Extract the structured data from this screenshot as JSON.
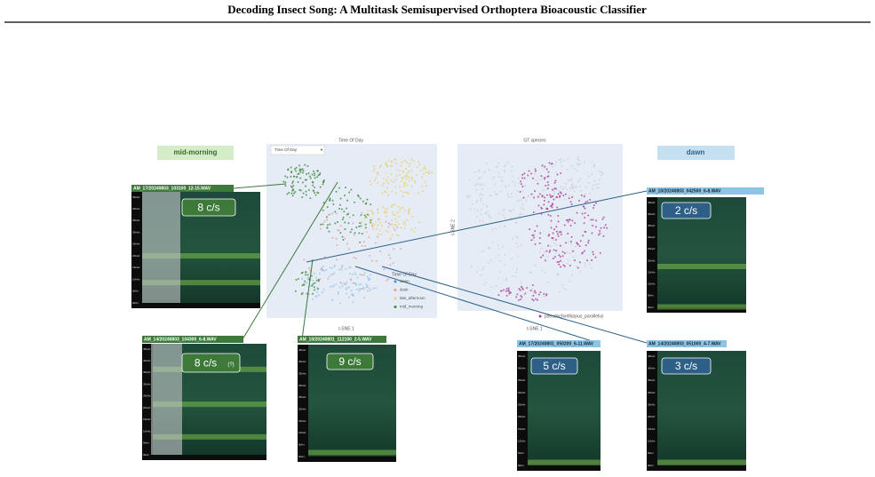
{
  "header": {
    "title": "Decoding Insect Song: A Multitask Semisupervised Orthoptera Bioacoustic Classifier"
  },
  "group_labels": {
    "left": "mid-morning",
    "right": "dawn"
  },
  "embedding_left": {
    "title": "Time Of Day",
    "dropdown": "Time Of Day",
    "x_label": "t-SNE 1",
    "legend_title": "Time Of Day",
    "legend": [
      "dawn",
      "dusk",
      "late_afternoon",
      "mid_morning"
    ]
  },
  "embedding_right": {
    "title": "GT species",
    "x_label": "t-SNE 1",
    "y_label": "t-SNE 2",
    "legend": [
      "pseudochorthippus_parallelus"
    ]
  },
  "spectrograms": [
    {
      "file": "AM_17/20240803_103100_12-15.WAV",
      "rate": "8 c/s"
    },
    {
      "file": "AM_14/20240803_104300_6-8.WAV",
      "rate": "8 c/s",
      "note": "(?)"
    },
    {
      "file": "AM_10/20240801_112100_2-5.WAV",
      "rate": "9 c/s"
    },
    {
      "file": "AM_10/20240803_042500_6-8.WAV",
      "rate": "2 c/s"
    },
    {
      "file": "AM_17/20240801_050200_6-11.WAV",
      "rate": "5 c/s"
    },
    {
      "file": "AM_14/20240803_051000_4-7.WAV",
      "rate": "3 c/s"
    }
  ],
  "freq_labels": [
    "45kHz",
    "40kHz",
    "35kHz",
    "30kHz",
    "25kHz",
    "20kHz",
    "15kHz",
    "10kHz",
    "5kHz",
    "0kHz"
  ]
}
